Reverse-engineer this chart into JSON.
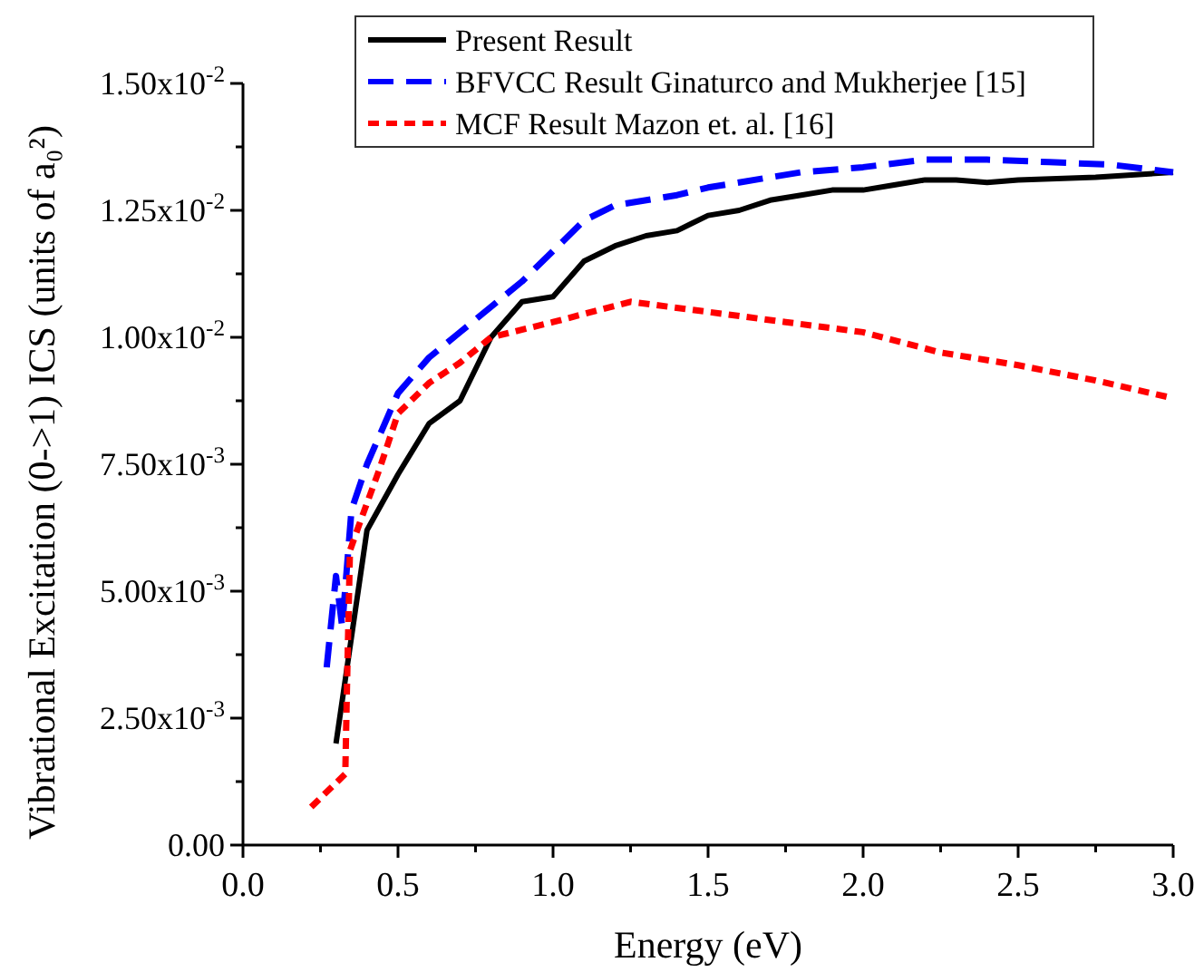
{
  "chart_data": {
    "type": "line",
    "xlabel": "Energy (eV)",
    "ylabel": "Vibrational Excitation (0->1) ICS (units of a₀²)",
    "xlim": [
      0,
      3.0
    ],
    "ylim": [
      0,
      0.015
    ],
    "xticks": [
      {
        "value": 0,
        "label": "0.0"
      },
      {
        "value": 0.25,
        "label": null
      },
      {
        "value": 0.5,
        "label": "0.5"
      },
      {
        "value": 0.75,
        "label": null
      },
      {
        "value": 1,
        "label": "1.0"
      },
      {
        "value": 1.25,
        "label": null
      },
      {
        "value": 1.5,
        "label": "1.5"
      },
      {
        "value": 1.75,
        "label": null
      },
      {
        "value": 2,
        "label": "2.0"
      },
      {
        "value": 2.25,
        "label": null
      },
      {
        "value": 2.5,
        "label": "2.5"
      },
      {
        "value": 2.75,
        "label": null
      },
      {
        "value": 3,
        "label": "3.0"
      }
    ],
    "yticks": [
      {
        "value": 0,
        "label": "0.00"
      },
      {
        "value": 0.00125,
        "label": null
      },
      {
        "value": 0.0025,
        "label": "2.50x10$^{-3}$"
      },
      {
        "value": 0.00375,
        "label": null
      },
      {
        "value": 0.005,
        "label": "5.00x10$^{-3}$"
      },
      {
        "value": 0.00625,
        "label": null
      },
      {
        "value": 0.0075,
        "label": "7.50x10$^{-3}$"
      },
      {
        "value": 0.00875,
        "label": null
      },
      {
        "value": 0.01,
        "label": "1.00x10$^{-2}$"
      },
      {
        "value": 0.01125,
        "label": null
      },
      {
        "value": 0.0125,
        "label": "1.25x10$^{-2}$"
      },
      {
        "value": 0.01375,
        "label": null
      },
      {
        "value": 0.015,
        "label": "1.50x10$^{-2}$"
      }
    ],
    "grid": false,
    "legend": "top",
    "series": [
      {
        "name": "Present Result",
        "color": "#000000",
        "line_style": "solid",
        "x": [
          0.3,
          0.4,
          0.5,
          0.6,
          0.7,
          0.8,
          0.9,
          1.0,
          1.1,
          1.2,
          1.3,
          1.4,
          1.5,
          1.6,
          1.7,
          1.8,
          1.9,
          2.0,
          2.1,
          2.2,
          2.3,
          2.4,
          2.5,
          2.75,
          3.0
        ],
        "values": [
          0.002,
          0.0062,
          0.0073,
          0.0083,
          0.00875,
          0.01,
          0.0107,
          0.0108,
          0.0115,
          0.0118,
          0.012,
          0.0121,
          0.0124,
          0.0125,
          0.0127,
          0.0128,
          0.0129,
          0.0129,
          0.013,
          0.0131,
          0.0131,
          0.01305,
          0.0131,
          0.01315,
          0.01325
        ]
      },
      {
        "name": "BFVCC Result Ginaturco and Mukherjee [15]",
        "color": "#0000ff",
        "line_style": "dashed",
        "x": [
          0.27,
          0.3,
          0.32,
          0.35,
          0.4,
          0.45,
          0.5,
          0.6,
          0.7,
          0.8,
          0.9,
          1.0,
          1.1,
          1.2,
          1.4,
          1.5,
          1.6,
          1.8,
          2.0,
          2.2,
          2.4,
          2.6,
          2.8,
          3.0
        ],
        "values": [
          0.0035,
          0.0053,
          0.0043,
          0.0066,
          0.0075,
          0.0082,
          0.0089,
          0.0096,
          0.0101,
          0.0106,
          0.0111,
          0.0117,
          0.0123,
          0.0126,
          0.0128,
          0.01295,
          0.01305,
          0.01325,
          0.01335,
          0.0135,
          0.0135,
          0.01345,
          0.0134,
          0.01325
        ]
      },
      {
        "name": "MCF Result Mazon et. al. [16]",
        "color": "#ff0000",
        "line_style": "dotted",
        "x": [
          0.22,
          0.33,
          0.335,
          0.345,
          0.38,
          0.44,
          0.5,
          0.6,
          0.7,
          0.8,
          1.0,
          1.25,
          1.5,
          1.75,
          2.0,
          2.25,
          2.5,
          2.75,
          3.0
        ],
        "values": [
          0.00075,
          0.0014,
          0.003,
          0.0058,
          0.0064,
          0.0074,
          0.0085,
          0.0091,
          0.0095,
          0.01,
          0.0103,
          0.0107,
          0.0105,
          0.0103,
          0.0101,
          0.0097,
          0.00945,
          0.00915,
          0.0088
        ]
      }
    ]
  }
}
